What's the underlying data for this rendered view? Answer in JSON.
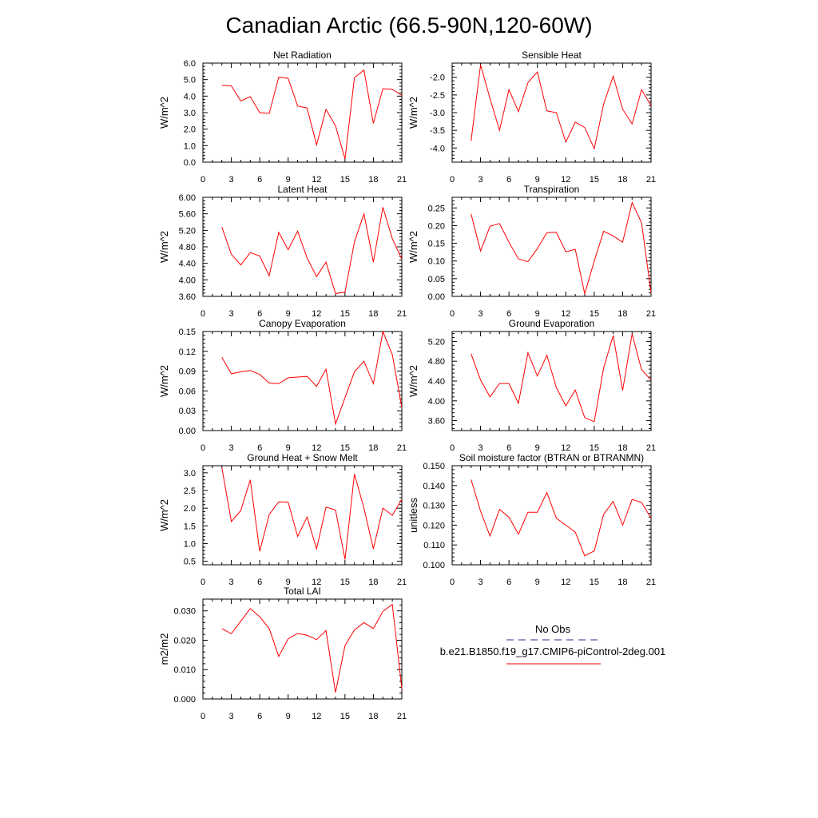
{
  "title": "Canadian Arctic (66.5-90N,120-60W)",
  "legend": {
    "entries": [
      {
        "label": "No Obs",
        "color": "#2d2d9a",
        "dash": true
      },
      {
        "label": "b.e21.B1850.f19_g17.CMIP6-piControl-2deg.001",
        "color": "#ff0000",
        "dash": false
      }
    ]
  },
  "chart_data": [
    {
      "type": "line",
      "title": "Net Radiation",
      "ylabel": "W/m^2",
      "xlim": [
        0,
        21
      ],
      "ylim": [
        0,
        6
      ],
      "xticks": [
        0,
        3,
        6,
        9,
        12,
        15,
        18,
        21
      ],
      "yticks": [
        0,
        1,
        2,
        3,
        4,
        5,
        6
      ],
      "ytick_labels": [
        "0.0",
        "1.0",
        "2.0",
        "3.0",
        "4.0",
        "5.0",
        "6.0"
      ],
      "series": [
        {
          "color": "#ff0000",
          "x": [
            2,
            3,
            4,
            5,
            6,
            7,
            8,
            9,
            10,
            11,
            12,
            13,
            14,
            15,
            16,
            17,
            18,
            19,
            20,
            21
          ],
          "y": [
            4.65,
            4.62,
            3.7,
            3.97,
            3.0,
            2.95,
            5.15,
            5.08,
            3.4,
            3.28,
            1.05,
            3.2,
            2.2,
            0.2,
            5.12,
            5.58,
            2.35,
            4.45,
            4.42,
            4.05
          ]
        }
      ]
    },
    {
      "type": "line",
      "title": "Sensible Heat",
      "ylabel": "W/m^2",
      "xlim": [
        0,
        21
      ],
      "ylim": [
        -4.4,
        -1.6
      ],
      "xticks": [
        0,
        3,
        6,
        9,
        12,
        15,
        18,
        21
      ],
      "yticks": [
        -2.0,
        -2.5,
        -3.0,
        -3.5,
        -4.0
      ],
      "ytick_labels": [
        "-2.0",
        "-2.5",
        "-3.0",
        "-3.5",
        "-4.0"
      ],
      "series": [
        {
          "color": "#ff0000",
          "x": [
            2,
            3,
            4,
            5,
            6,
            7,
            8,
            9,
            10,
            11,
            12,
            13,
            14,
            15,
            16,
            17,
            18,
            19,
            20,
            21
          ],
          "y": [
            -3.8,
            -1.65,
            -2.6,
            -3.5,
            -2.35,
            -2.97,
            -2.15,
            -1.85,
            -2.95,
            -3.0,
            -3.83,
            -3.27,
            -3.42,
            -4.02,
            -2.75,
            -1.97,
            -2.9,
            -3.32,
            -2.35,
            -2.8
          ]
        }
      ]
    },
    {
      "type": "line",
      "title": "Latent Heat",
      "ylabel": "W/m^2",
      "xlim": [
        0,
        21
      ],
      "ylim": [
        3.6,
        6.0
      ],
      "xticks": [
        0,
        3,
        6,
        9,
        12,
        15,
        18,
        21
      ],
      "yticks": [
        3.6,
        4.0,
        4.4,
        4.8,
        5.2,
        5.6,
        6.0
      ],
      "ytick_labels": [
        "3.60",
        "4.00",
        "4.40",
        "4.80",
        "5.20",
        "5.60",
        "6.00"
      ],
      "series": [
        {
          "color": "#ff0000",
          "x": [
            2,
            3,
            4,
            5,
            6,
            7,
            8,
            9,
            10,
            11,
            12,
            13,
            14,
            15,
            16,
            17,
            18,
            19,
            20,
            21
          ],
          "y": [
            5.28,
            4.62,
            4.36,
            4.66,
            4.58,
            4.1,
            5.15,
            4.73,
            5.18,
            4.53,
            4.08,
            4.43,
            3.67,
            3.7,
            4.92,
            5.6,
            4.43,
            5.76,
            5.0,
            4.5
          ]
        }
      ]
    },
    {
      "type": "line",
      "title": "Transpiration",
      "ylabel": "W/m^2",
      "xlim": [
        0,
        21
      ],
      "ylim": [
        0,
        0.28
      ],
      "xticks": [
        0,
        3,
        6,
        9,
        12,
        15,
        18,
        21
      ],
      "yticks": [
        0,
        0.05,
        0.1,
        0.15,
        0.2,
        0.25
      ],
      "ytick_labels": [
        "0.00",
        "0.05",
        "0.10",
        "0.15",
        "0.20",
        "0.25"
      ],
      "series": [
        {
          "color": "#ff0000",
          "x": [
            2,
            3,
            4,
            5,
            6,
            7,
            8,
            9,
            10,
            11,
            12,
            13,
            14,
            15,
            16,
            17,
            18,
            19,
            20,
            21
          ],
          "y": [
            0.233,
            0.128,
            0.198,
            0.206,
            0.153,
            0.106,
            0.098,
            0.135,
            0.18,
            0.181,
            0.126,
            0.133,
            0.007,
            0.1,
            0.184,
            0.171,
            0.153,
            0.265,
            0.208,
            0.01
          ]
        }
      ]
    },
    {
      "type": "line",
      "title": "Canopy Evaporation",
      "ylabel": "W/m^2",
      "xlim": [
        0,
        21
      ],
      "ylim": [
        0,
        0.15
      ],
      "xticks": [
        0,
        3,
        6,
        9,
        12,
        15,
        18,
        21
      ],
      "yticks": [
        0,
        0.03,
        0.06,
        0.09,
        0.12,
        0.15
      ],
      "ytick_labels": [
        "0.00",
        "0.03",
        "0.06",
        "0.09",
        "0.12",
        "0.15"
      ],
      "series": [
        {
          "color": "#ff0000",
          "x": [
            2,
            3,
            4,
            5,
            6,
            7,
            8,
            9,
            10,
            11,
            12,
            13,
            14,
            15,
            16,
            17,
            18,
            19,
            20,
            21
          ],
          "y": [
            0.111,
            0.086,
            0.089,
            0.091,
            0.085,
            0.072,
            0.071,
            0.08,
            0.081,
            0.082,
            0.067,
            0.093,
            0.01,
            0.05,
            0.089,
            0.105,
            0.071,
            0.15,
            0.115,
            0.035
          ]
        }
      ]
    },
    {
      "type": "line",
      "title": "Ground Evaporation",
      "ylabel": "W/m^2",
      "xlim": [
        0,
        21
      ],
      "ylim": [
        3.4,
        5.4
      ],
      "xticks": [
        0,
        3,
        6,
        9,
        12,
        15,
        18,
        21
      ],
      "yticks": [
        3.6,
        4.0,
        4.4,
        4.8,
        5.2
      ],
      "ytick_labels": [
        "3.60",
        "4.00",
        "4.40",
        "4.80",
        "5.20"
      ],
      "series": [
        {
          "color": "#ff0000",
          "x": [
            2,
            3,
            4,
            5,
            6,
            7,
            8,
            9,
            10,
            11,
            12,
            13,
            14,
            15,
            16,
            17,
            18,
            19,
            20,
            21
          ],
          "y": [
            4.95,
            4.42,
            4.08,
            4.35,
            4.35,
            3.95,
            4.97,
            4.5,
            4.92,
            4.27,
            3.9,
            4.22,
            3.66,
            3.58,
            4.67,
            5.32,
            4.21,
            5.35,
            4.63,
            4.42
          ]
        }
      ]
    },
    {
      "type": "line",
      "title": "Ground Heat + Snow Melt",
      "ylabel": "W/m^2",
      "xlim": [
        0,
        21
      ],
      "ylim": [
        0.4,
        3.2
      ],
      "xticks": [
        0,
        3,
        6,
        9,
        12,
        15,
        18,
        21
      ],
      "yticks": [
        0.5,
        1.0,
        1.5,
        2.0,
        2.5,
        3.0
      ],
      "ytick_labels": [
        "0.5",
        "1.0",
        "1.5",
        "2.0",
        "2.5",
        "3.0"
      ],
      "series": [
        {
          "color": "#ff0000",
          "x": [
            2,
            3,
            4,
            5,
            6,
            7,
            8,
            9,
            10,
            11,
            12,
            13,
            14,
            15,
            16,
            17,
            18,
            19,
            20,
            21
          ],
          "y": [
            3.15,
            1.62,
            1.93,
            2.8,
            0.78,
            1.82,
            2.18,
            2.17,
            1.2,
            1.75,
            0.85,
            2.03,
            1.95,
            0.55,
            2.97,
            2.0,
            0.85,
            2.0,
            1.8,
            2.25
          ]
        }
      ]
    },
    {
      "type": "line",
      "title": "Soil moisture factor (BTRAN or BTRANMN)",
      "ylabel": "unitless",
      "xlim": [
        0,
        21
      ],
      "ylim": [
        0.1,
        0.15
      ],
      "xticks": [
        0,
        3,
        6,
        9,
        12,
        15,
        18,
        21
      ],
      "yticks": [
        0.1,
        0.11,
        0.12,
        0.13,
        0.14,
        0.15
      ],
      "ytick_labels": [
        "0.100",
        "0.110",
        "0.120",
        "0.130",
        "0.140",
        "0.150"
      ],
      "series": [
        {
          "color": "#ff0000",
          "x": [
            2,
            3,
            4,
            5,
            6,
            7,
            8,
            9,
            10,
            11,
            12,
            13,
            14,
            15,
            16,
            17,
            18,
            19,
            20,
            21
          ],
          "y": [
            0.143,
            0.127,
            0.1145,
            0.128,
            0.124,
            0.1155,
            0.1265,
            0.1265,
            0.1365,
            0.1235,
            0.12,
            0.1165,
            0.1045,
            0.107,
            0.1255,
            0.132,
            0.12,
            0.133,
            0.1315,
            0.1235
          ]
        }
      ]
    },
    {
      "type": "line",
      "title": "Total LAI",
      "ylabel": "m2/m2",
      "xlim": [
        0,
        21
      ],
      "ylim": [
        0,
        0.034
      ],
      "xticks": [
        0,
        3,
        6,
        9,
        12,
        15,
        18,
        21
      ],
      "yticks": [
        0,
        0.01,
        0.02,
        0.03
      ],
      "ytick_labels": [
        "0.000",
        "0.010",
        "0.020",
        "0.030"
      ],
      "series": [
        {
          "color": "#ff0000",
          "x": [
            2,
            3,
            4,
            5,
            6,
            7,
            8,
            9,
            10,
            11,
            12,
            13,
            14,
            15,
            16,
            17,
            18,
            19,
            20,
            21
          ],
          "y": [
            0.024,
            0.0222,
            0.0265,
            0.0308,
            0.028,
            0.024,
            0.0145,
            0.0205,
            0.0223,
            0.0217,
            0.0202,
            0.0233,
            0.0022,
            0.0182,
            0.0235,
            0.026,
            0.024,
            0.0298,
            0.0322,
            0.0035
          ]
        }
      ]
    }
  ]
}
